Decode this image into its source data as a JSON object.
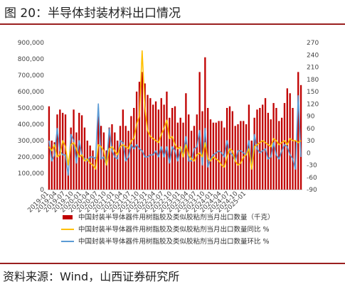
{
  "header": {
    "title": "图 20：半导体封装材料出口情况"
  },
  "footer": {
    "source": "资料来源：Wind，山西证券研究所"
  },
  "colors": {
    "bar": "#c00000",
    "yoy": "#ffc000",
    "mom": "#5b9bd5",
    "rule": "#9a1f1f"
  },
  "chart_data": {
    "type": "bar",
    "title": "",
    "x_ticks": [
      "2019-01",
      "2019-04",
      "2019-07",
      "2019-10",
      "2020-01",
      "2020-04",
      "2020-07",
      "2020-10",
      "2021-01",
      "2021-04",
      "2021-07",
      "2021-10",
      "2022-01",
      "2022-04",
      "2022-07",
      "2022-10",
      "2023-01",
      "2023-04",
      "2023-07",
      "2023-10",
      "2024-01",
      "2024-04",
      "2024-07",
      "2024-10",
      "2025-01"
    ],
    "y_left": {
      "ylim": [
        0,
        900000
      ],
      "ticks": [
        "0",
        "100,000",
        "200,000",
        "300,000",
        "400,000",
        "500,000",
        "600,000",
        "700,000",
        "800,000",
        "900,000"
      ]
    },
    "y_right": {
      "ylim": [
        -90,
        270
      ],
      "ticks": [
        "-90",
        "-60",
        "-30",
        "0",
        "30",
        "60",
        "90",
        "120",
        "150",
        "180",
        "210",
        "240",
        "270"
      ]
    },
    "grid": false,
    "legend_placement": "bottom",
    "series": [
      {
        "name": "中国封装半导体器件用树脂胶及类似胶粘剂当月出口数量（千克）",
        "type": "bar",
        "axis": "left",
        "values": [
          510000,
          300000,
          290000,
          460000,
          490000,
          470000,
          460000,
          120000,
          380000,
          490000,
          350000,
          470000,
          455000,
          380000,
          300000,
          270000,
          240000,
          200000,
          450000,
          390000,
          350000,
          240000,
          380000,
          400000,
          350000,
          300000,
          390000,
          490000,
          390000,
          360000,
          450000,
          500000,
          600000,
          660000,
          720000,
          650000,
          580000,
          560000,
          520000,
          540000,
          490000,
          560000,
          520000,
          600000,
          440000,
          500000,
          510000,
          410000,
          440000,
          410000,
          590000,
          460000,
          360000,
          390000,
          460000,
          720000,
          480000,
          810000,
          500000,
          430000,
          410000,
          410000,
          420000,
          420000,
          380000,
          500000,
          510000,
          480000,
          390000,
          400000,
          420000,
          420000,
          400000,
          520000,
          300000,
          440000,
          490000,
          500000,
          520000,
          560000,
          470000,
          430000,
          530000,
          500000,
          420000,
          440000,
          530000,
          620000,
          590000,
          500000,
          300000,
          720000,
          640000
        ]
      },
      {
        "name": "中国封装半导体器件用树脂胶及类似胶粘剂当月出口数量同比 %",
        "type": "line",
        "axis": "right",
        "values": [
          15,
          5,
          20,
          -10,
          -5,
          30,
          15,
          -30,
          20,
          25,
          10,
          -10,
          -5,
          -20,
          -15,
          -25,
          -30,
          -40,
          20,
          15,
          5,
          -30,
          10,
          15,
          5,
          -5,
          15,
          20,
          15,
          10,
          30,
          35,
          70,
          90,
          250,
          110,
          55,
          40,
          35,
          30,
          25,
          45,
          60,
          80,
          35,
          40,
          20,
          10,
          15,
          -10,
          20,
          -5,
          -15,
          -20,
          -5,
          0,
          -10,
          25,
          -15,
          -20,
          -10,
          -15,
          -20,
          -30,
          -35,
          -10,
          10,
          5,
          -20,
          -30,
          -25,
          -10,
          -5,
          10,
          -40,
          15,
          20,
          25,
          30,
          25,
          20,
          15,
          35,
          30,
          20,
          25,
          30,
          20,
          35,
          30,
          30,
          25,
          30
        ]
      },
      {
        "name": "中国封装半导体器件用树脂胶及类似胶粘剂当月出口数量环比 %",
        "type": "line",
        "axis": "right",
        "values": [
          30,
          -20,
          -5,
          60,
          5,
          -5,
          -5,
          -55,
          45,
          30,
          -25,
          30,
          -5,
          -15,
          -20,
          -10,
          -10,
          -15,
          120,
          -15,
          -10,
          -30,
          60,
          5,
          -10,
          -15,
          30,
          25,
          -20,
          -10,
          20,
          10,
          20,
          10,
          5,
          -10,
          -10,
          -5,
          -5,
          5,
          -10,
          15,
          -10,
          15,
          -25,
          15,
          5,
          -20,
          10,
          -5,
          40,
          -20,
          -20,
          10,
          15,
          55,
          -30,
          60,
          -35,
          -15,
          -5,
          0,
          5,
          0,
          -10,
          30,
          0,
          -5,
          -20,
          5,
          5,
          0,
          -5,
          30,
          -40,
          45,
          10,
          0,
          5,
          10,
          -15,
          -10,
          25,
          -5,
          -15,
          5,
          20,
          15,
          -5,
          -15,
          -40,
          140,
          -10
        ]
      }
    ]
  }
}
